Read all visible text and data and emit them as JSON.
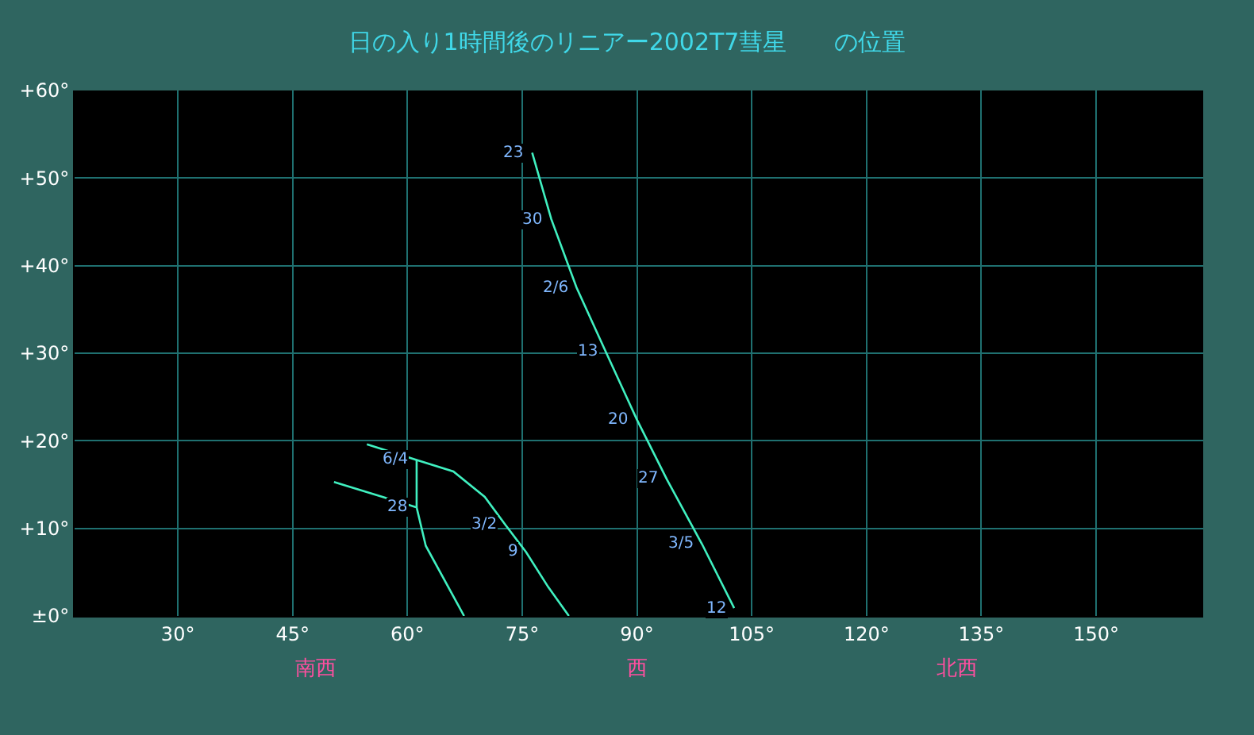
{
  "chart_data": {
    "type": "line",
    "title": "日の入り1時間後のリニアー2002T7彗星　　の位置",
    "series": [
      {
        "color": "#40f0c0",
        "x": [
          76.3,
          78.8,
          82.1,
          85.9,
          90.0,
          93.9,
          98.5,
          102.7
        ],
        "values": [
          52.9,
          45.3,
          37.5,
          30.2,
          22.4,
          15.6,
          8.2,
          0.9
        ]
      },
      {
        "color": "#40f0c0",
        "x": [
          54.7,
          61.2,
          66.0,
          70.1,
          72.8,
          75.5,
          78.4,
          81.1
        ],
        "values": [
          19.6,
          17.8,
          16.5,
          13.6,
          10.4,
          7.3,
          3.3,
          0
        ]
      },
      {
        "color": "#40f0c0",
        "x": [
          50.4,
          61.2,
          62.4,
          67.4
        ],
        "values": [
          15.3,
          12.4,
          8.0,
          0
        ]
      },
      {
        "color": "#40f0c0",
        "x": [
          61.2,
          61.2
        ],
        "values": [
          17.8,
          12.4
        ]
      }
    ],
    "annotations": [
      {
        "text": "23",
        "x": 76.3,
        "y": 52.9
      },
      {
        "text": "30",
        "x": 78.8,
        "y": 45.3
      },
      {
        "text": "2/6",
        "x": 82.1,
        "y": 37.5
      },
      {
        "text": "13",
        "x": 85.9,
        "y": 30.2
      },
      {
        "text": "20",
        "x": 90.0,
        "y": 22.4
      },
      {
        "text": "27",
        "x": 93.9,
        "y": 15.6
      },
      {
        "text": "3/5",
        "x": 98.5,
        "y": 8.2
      },
      {
        "text": "12",
        "x": 102.7,
        "y": 0.9
      },
      {
        "text": "6/4",
        "x": 61.2,
        "y": 17.8
      },
      {
        "text": "28",
        "x": 61.2,
        "y": 12.4
      },
      {
        "text": "3/2",
        "x": 72.8,
        "y": 10.4
      },
      {
        "text": "9",
        "x": 75.5,
        "y": 7.3
      },
      "南西",
      "西",
      "北西"
    ],
    "xlim": [
      16.5,
      164
    ],
    "ylim": [
      0,
      60
    ],
    "xticks": [
      {
        "value": 30,
        "label": "30°"
      },
      {
        "value": 45,
        "label": "45°"
      },
      {
        "value": 60,
        "label": "60°"
      },
      {
        "value": 75,
        "label": "75°"
      },
      {
        "value": 90,
        "label": "90°"
      },
      {
        "value": 105,
        "label": "105°"
      },
      {
        "value": 120,
        "label": "120°"
      },
      {
        "value": 135,
        "label": "135°"
      },
      {
        "value": 150,
        "label": "150°"
      }
    ],
    "yticks": [
      {
        "value": 0,
        "label": "±0°"
      },
      {
        "value": 10,
        "label": "+10°"
      },
      {
        "value": 20,
        "label": "+20°"
      },
      {
        "value": 30,
        "label": "+30°"
      },
      {
        "value": 40,
        "label": "+40°"
      },
      {
        "value": 50,
        "label": "+50°"
      },
      {
        "value": 60,
        "label": "+60°"
      }
    ],
    "grid": true,
    "marker": "none",
    "line_style": "solid"
  }
}
